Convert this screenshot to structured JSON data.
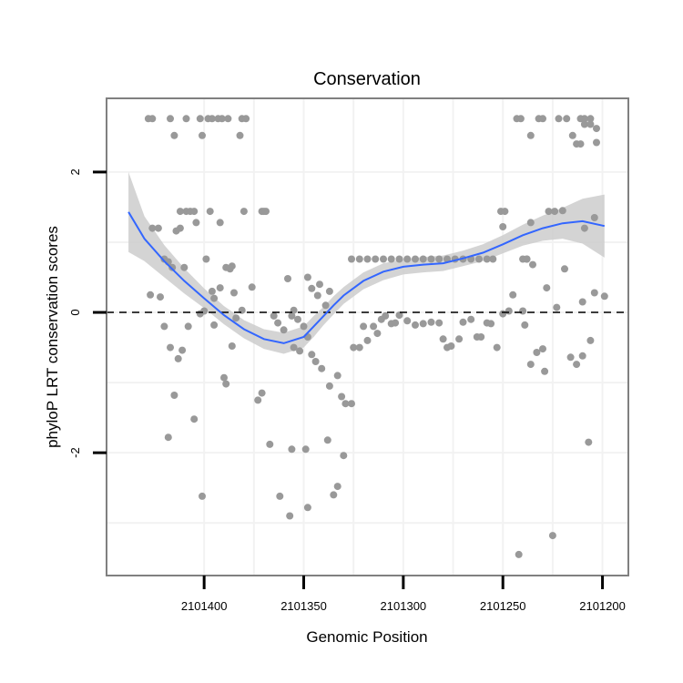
{
  "chart_data": {
    "type": "scatter",
    "title": "Conservation",
    "xlabel": "Genomic Position",
    "ylabel": "phyloP LRT conservation scores",
    "x_reversed": true,
    "xlim": [
      2101449,
      2101187
    ],
    "ylim": [
      -3.75,
      3.05
    ],
    "x_ticks": [
      2101400,
      2101350,
      2101300,
      2101250,
      2101200
    ],
    "x_tick_labels": [
      "2101400",
      "2101350",
      "2101300",
      "2101250",
      "2101200"
    ],
    "y_ticks": [
      -2,
      0,
      2
    ],
    "y_tick_labels": [
      "-2",
      "0",
      "2"
    ],
    "minor_y": [
      -3,
      -1,
      1
    ],
    "minor_x": [
      2101375,
      2101325,
      2101275,
      2101225
    ],
    "reference_line": 0,
    "colors": {
      "points": "#999999",
      "fit": "#3366ff",
      "ribbon": "#cccccc",
      "panel_border": "#808080",
      "grid": "#f2f2f2"
    },
    "points": [
      [
        2101428,
        2.76
      ],
      [
        2101426,
        2.76
      ],
      [
        2101417,
        2.76
      ],
      [
        2101409,
        2.76
      ],
      [
        2101402,
        2.76
      ],
      [
        2101398,
        2.76
      ],
      [
        2101396,
        2.76
      ],
      [
        2101393,
        2.76
      ],
      [
        2101391,
        2.76
      ],
      [
        2101388,
        2.76
      ],
      [
        2101381,
        2.76
      ],
      [
        2101379,
        2.76
      ],
      [
        2101415,
        2.52
      ],
      [
        2101401,
        2.52
      ],
      [
        2101382,
        2.52
      ],
      [
        2101412,
        1.44
      ],
      [
        2101409,
        1.44
      ],
      [
        2101407,
        1.44
      ],
      [
        2101405,
        1.44
      ],
      [
        2101397,
        1.44
      ],
      [
        2101371,
        1.44
      ],
      [
        2101370,
        1.44
      ],
      [
        2101369,
        1.44
      ],
      [
        2101380,
        1.44
      ],
      [
        2101404,
        1.28
      ],
      [
        2101392,
        1.28
      ],
      [
        2101426,
        1.2
      ],
      [
        2101423,
        1.2
      ],
      [
        2101427,
        0.25
      ],
      [
        2101422,
        0.22
      ],
      [
        2101420,
        0.76
      ],
      [
        2101418,
        0.72
      ],
      [
        2101416,
        0.64
      ],
      [
        2101414,
        1.16
      ],
      [
        2101412,
        1.2
      ],
      [
        2101410,
        0.64
      ],
      [
        2101399,
        0.76
      ],
      [
        2101396,
        0.3
      ],
      [
        2101395,
        0.2
      ],
      [
        2101392,
        0.35
      ],
      [
        2101389,
        0.64
      ],
      [
        2101387,
        0.62
      ],
      [
        2101386,
        0.66
      ],
      [
        2101385,
        0.28
      ],
      [
        2101376,
        0.36
      ],
      [
        2101358,
        0.48
      ],
      [
        2101348,
        0.5
      ],
      [
        2101346,
        0.34
      ],
      [
        2101343,
        0.24
      ],
      [
        2101342,
        0.4
      ],
      [
        2101339,
        0.1
      ],
      [
        2101337,
        0.3
      ],
      [
        2101355,
        0.03
      ],
      [
        2101356,
        -0.05
      ],
      [
        2101353,
        -0.1
      ],
      [
        2101350,
        -0.2
      ],
      [
        2101365,
        -0.05
      ],
      [
        2101363,
        -0.15
      ],
      [
        2101360,
        -0.25
      ],
      [
        2101355,
        -0.5
      ],
      [
        2101352,
        -0.55
      ],
      [
        2101348,
        -0.35
      ],
      [
        2101346,
        -0.6
      ],
      [
        2101344,
        -0.7
      ],
      [
        2101341,
        -0.8
      ],
      [
        2101337,
        -1.05
      ],
      [
        2101333,
        -0.9
      ],
      [
        2101331,
        -1.2
      ],
      [
        2101329,
        -1.3
      ],
      [
        2101326,
        -1.3
      ],
      [
        2101420,
        -0.2
      ],
      [
        2101417,
        -0.5
      ],
      [
        2101415,
        -1.18
      ],
      [
        2101413,
        -0.66
      ],
      [
        2101411,
        -0.54
      ],
      [
        2101408,
        -0.2
      ],
      [
        2101405,
        -1.52
      ],
      [
        2101402,
        -0.02
      ],
      [
        2101400,
        0.02
      ],
      [
        2101395,
        -0.18
      ],
      [
        2101390,
        -0.93
      ],
      [
        2101389,
        -1.02
      ],
      [
        2101386,
        -0.48
      ],
      [
        2101384,
        -0.08
      ],
      [
        2101381,
        0.03
      ],
      [
        2101418,
        -1.78
      ],
      [
        2101401,
        -2.62
      ],
      [
        2101373,
        -1.25
      ],
      [
        2101371,
        -1.15
      ],
      [
        2101367,
        -1.88
      ],
      [
        2101362,
        -2.62
      ],
      [
        2101357,
        -2.9
      ],
      [
        2101348,
        -2.78
      ],
      [
        2101349,
        -1.95
      ],
      [
        2101356,
        -1.95
      ],
      [
        2101338,
        -1.82
      ],
      [
        2101335,
        -2.6
      ],
      [
        2101333,
        -2.48
      ],
      [
        2101330,
        -2.04
      ],
      [
        2101325,
        -0.5
      ],
      [
        2101322,
        -0.5
      ],
      [
        2101320,
        -0.2
      ],
      [
        2101318,
        -0.4
      ],
      [
        2101315,
        -0.2
      ],
      [
        2101313,
        -0.3
      ],
      [
        2101311,
        -0.1
      ],
      [
        2101309,
        -0.05
      ],
      [
        2101306,
        -0.16
      ],
      [
        2101304,
        -0.15
      ],
      [
        2101302,
        -0.04
      ],
      [
        2101298,
        -0.12
      ],
      [
        2101294,
        -0.18
      ],
      [
        2101290,
        -0.16
      ],
      [
        2101286,
        -0.14
      ],
      [
        2101282,
        -0.15
      ],
      [
        2101280,
        -0.38
      ],
      [
        2101278,
        -0.5
      ],
      [
        2101276,
        -0.48
      ],
      [
        2101272,
        -0.38
      ],
      [
        2101270,
        -0.14
      ],
      [
        2101266,
        -0.1
      ],
      [
        2101263,
        -0.35
      ],
      [
        2101261,
        -0.35
      ],
      [
        2101258,
        -0.15
      ],
      [
        2101256,
        -0.16
      ],
      [
        2101253,
        -0.5
      ],
      [
        2101250,
        -0.02
      ],
      [
        2101326,
        0.76
      ],
      [
        2101322,
        0.76
      ],
      [
        2101318,
        0.76
      ],
      [
        2101314,
        0.76
      ],
      [
        2101310,
        0.76
      ],
      [
        2101306,
        0.76
      ],
      [
        2101302,
        0.76
      ],
      [
        2101298,
        0.76
      ],
      [
        2101294,
        0.76
      ],
      [
        2101290,
        0.76
      ],
      [
        2101286,
        0.76
      ],
      [
        2101282,
        0.76
      ],
      [
        2101278,
        0.76
      ],
      [
        2101274,
        0.76
      ],
      [
        2101270,
        0.76
      ],
      [
        2101266,
        0.76
      ],
      [
        2101262,
        0.76
      ],
      [
        2101258,
        0.76
      ],
      [
        2101255,
        0.76
      ],
      [
        2101240,
        0.76
      ],
      [
        2101238,
        0.76
      ],
      [
        2101243,
        2.76
      ],
      [
        2101241,
        2.76
      ],
      [
        2101232,
        2.76
      ],
      [
        2101230,
        2.76
      ],
      [
        2101222,
        2.76
      ],
      [
        2101218,
        2.76
      ],
      [
        2101211,
        2.76
      ],
      [
        2101209,
        2.76
      ],
      [
        2101206,
        2.76
      ],
      [
        2101236,
        2.52
      ],
      [
        2101215,
        2.52
      ],
      [
        2101213,
        2.4
      ],
      [
        2101211,
        2.4
      ],
      [
        2101203,
        2.62
      ],
      [
        2101203,
        2.42
      ],
      [
        2101209,
        2.68
      ],
      [
        2101206,
        2.68
      ],
      [
        2101251,
        1.44
      ],
      [
        2101249,
        1.44
      ],
      [
        2101236,
        1.28
      ],
      [
        2101227,
        1.44
      ],
      [
        2101224,
        1.44
      ],
      [
        2101220,
        1.45
      ],
      [
        2101250,
        1.22
      ],
      [
        2101204,
        1.35
      ],
      [
        2101209,
        1.2
      ],
      [
        2101245,
        0.25
      ],
      [
        2101238,
        0.76
      ],
      [
        2101235,
        0.68
      ],
      [
        2101228,
        0.35
      ],
      [
        2101219,
        0.62
      ],
      [
        2101210,
        0.15
      ],
      [
        2101204,
        0.28
      ],
      [
        2101199,
        0.23
      ],
      [
        2101247,
        0.02
      ],
      [
        2101240,
        0.02
      ],
      [
        2101239,
        -0.18
      ],
      [
        2101236,
        -0.74
      ],
      [
        2101233,
        -0.57
      ],
      [
        2101230,
        -0.52
      ],
      [
        2101229,
        -0.84
      ],
      [
        2101223,
        0.07
      ],
      [
        2101216,
        -0.64
      ],
      [
        2101213,
        -0.74
      ],
      [
        2101210,
        -0.62
      ],
      [
        2101206,
        -0.4
      ],
      [
        2101207,
        -1.85
      ],
      [
        2101242,
        -3.45
      ],
      [
        2101225,
        -3.18
      ]
    ],
    "fit": {
      "x": [
        2101438,
        2101430,
        2101420,
        2101410,
        2101400,
        2101390,
        2101380,
        2101370,
        2101360,
        2101350,
        2101345,
        2101340,
        2101335,
        2101330,
        2101320,
        2101310,
        2101300,
        2101290,
        2101280,
        2101270,
        2101260,
        2101250,
        2101240,
        2101230,
        2101220,
        2101210,
        2101199
      ],
      "y": [
        1.43,
        1.05,
        0.73,
        0.45,
        0.2,
        -0.04,
        -0.24,
        -0.38,
        -0.44,
        -0.35,
        -0.2,
        -0.05,
        0.1,
        0.24,
        0.45,
        0.58,
        0.65,
        0.68,
        0.7,
        0.77,
        0.85,
        0.97,
        1.1,
        1.2,
        1.27,
        1.3,
        1.23
      ],
      "lower": [
        0.86,
        0.73,
        0.5,
        0.27,
        0.06,
        -0.17,
        -0.37,
        -0.52,
        -0.59,
        -0.5,
        -0.35,
        -0.18,
        -0.03,
        0.12,
        0.33,
        0.46,
        0.54,
        0.57,
        0.59,
        0.66,
        0.73,
        0.84,
        0.95,
        1.02,
        1.05,
        0.98,
        0.78
      ],
      "upper": [
        2.0,
        1.37,
        0.96,
        0.63,
        0.34,
        0.09,
        -0.11,
        -0.24,
        -0.29,
        -0.2,
        -0.05,
        0.08,
        0.23,
        0.36,
        0.57,
        0.7,
        0.76,
        0.79,
        0.81,
        0.88,
        0.97,
        1.1,
        1.25,
        1.38,
        1.49,
        1.62,
        1.68
      ]
    }
  }
}
